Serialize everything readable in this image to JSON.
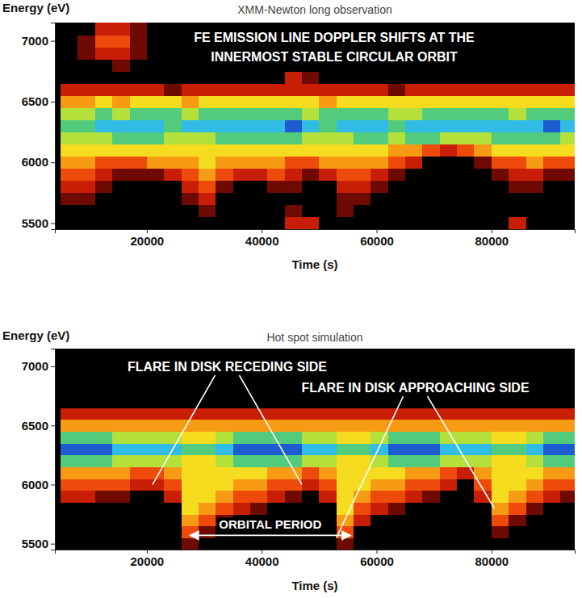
{
  "chart_data": [
    {
      "type": "heatmap",
      "title": "XMM-Newton long observation",
      "xlabel": "Time (s)",
      "ylabel": "Energy (eV)",
      "xlim": [
        4000,
        94500
      ],
      "ylim": [
        5450,
        7150
      ],
      "xticks": [
        20000,
        40000,
        60000,
        80000
      ],
      "yticks": [
        5500,
        6000,
        6500,
        7000
      ],
      "zlim": [
        0,
        9
      ],
      "x_edges": [
        5000,
        8000,
        11000,
        14000,
        17000,
        20000,
        23000,
        26000,
        29000,
        32000,
        35000,
        38000,
        41000,
        44000,
        47000,
        50000,
        53000,
        56000,
        59000,
        62000,
        65000,
        68000,
        71000,
        74000,
        77000,
        80000,
        83000,
        86000,
        89000,
        92000,
        95000
      ],
      "y_edges": [
        5450,
        5550,
        5650,
        5750,
        5850,
        5950,
        6050,
        6150,
        6250,
        6350,
        6450,
        6550,
        6650,
        6750,
        6850,
        6950,
        7050,
        7150
      ],
      "z": [
        [
          0,
          0,
          0,
          0,
          0,
          0,
          0,
          0,
          0,
          0,
          0,
          0,
          0,
          2,
          2,
          0,
          0,
          0,
          0,
          0,
          0,
          0,
          0,
          0,
          0,
          0,
          2,
          0,
          0,
          0
        ],
        [
          0,
          0,
          0,
          0,
          0,
          0,
          0,
          0,
          1,
          0,
          0,
          0,
          0,
          1,
          0,
          0,
          1,
          0,
          0,
          0,
          0,
          0,
          0,
          0,
          0,
          0,
          0,
          0,
          0,
          0
        ],
        [
          1,
          1,
          0,
          0,
          0,
          0,
          0,
          1,
          2,
          0,
          0,
          0,
          0,
          0,
          0,
          0,
          1,
          1,
          0,
          0,
          0,
          0,
          0,
          0,
          0,
          0,
          0,
          0,
          0,
          0
        ],
        [
          2,
          2,
          1,
          0,
          0,
          0,
          0,
          2,
          3,
          1,
          0,
          0,
          1,
          1,
          0,
          0,
          2,
          2,
          1,
          0,
          0,
          0,
          0,
          0,
          0,
          0,
          1,
          1,
          0,
          0
        ],
        [
          3,
          3,
          2,
          1,
          1,
          1,
          2,
          3,
          4,
          3,
          2,
          2,
          3,
          2,
          1,
          2,
          3,
          3,
          2,
          1,
          0,
          0,
          0,
          0,
          0,
          1,
          2,
          2,
          1,
          1
        ],
        [
          4,
          4,
          3,
          3,
          3,
          4,
          4,
          4,
          5,
          4,
          4,
          4,
          4,
          3,
          3,
          4,
          4,
          4,
          4,
          3,
          2,
          0,
          0,
          0,
          1,
          3,
          3,
          4,
          3,
          3
        ],
        [
          5,
          5,
          5,
          5,
          5,
          5,
          5,
          5,
          5,
          5,
          5,
          5,
          5,
          5,
          5,
          5,
          5,
          5,
          5,
          4,
          4,
          3,
          2,
          3,
          4,
          5,
          5,
          5,
          5,
          5
        ],
        [
          6,
          6,
          6,
          7,
          7,
          7,
          6,
          6,
          6,
          7,
          7,
          7,
          7,
          7,
          6,
          6,
          6,
          7,
          7,
          6,
          7,
          7,
          6,
          6,
          6,
          7,
          7,
          7,
          7,
          6
        ],
        [
          7,
          7,
          8,
          8,
          8,
          8,
          7,
          8,
          8,
          8,
          8,
          8,
          8,
          9,
          8,
          7,
          8,
          8,
          8,
          7,
          8,
          8,
          8,
          8,
          8,
          8,
          8,
          8,
          9,
          8
        ],
        [
          6,
          6,
          7,
          6,
          7,
          7,
          7,
          6,
          7,
          7,
          7,
          7,
          7,
          7,
          6,
          7,
          7,
          7,
          7,
          6,
          6,
          7,
          7,
          7,
          7,
          7,
          6,
          7,
          7,
          7
        ],
        [
          4,
          4,
          5,
          4,
          5,
          5,
          5,
          4,
          5,
          5,
          5,
          5,
          5,
          5,
          5,
          4,
          5,
          5,
          5,
          5,
          5,
          5,
          5,
          5,
          5,
          5,
          5,
          5,
          5,
          5
        ],
        [
          2,
          2,
          2,
          2,
          2,
          2,
          1,
          2,
          2,
          2,
          2,
          2,
          2,
          2,
          2,
          2,
          2,
          2,
          2,
          1,
          2,
          2,
          2,
          2,
          2,
          2,
          2,
          2,
          2,
          2
        ],
        [
          0,
          0,
          0,
          0,
          0,
          0,
          0,
          0,
          0,
          0,
          0,
          0,
          0,
          2,
          1,
          0,
          0,
          0,
          0,
          0,
          0,
          0,
          0,
          0,
          0,
          0,
          0,
          0,
          0,
          0
        ],
        [
          0,
          0,
          0,
          1,
          0,
          0,
          0,
          0,
          0,
          0,
          0,
          0,
          0,
          0,
          0,
          0,
          0,
          0,
          0,
          0,
          0,
          0,
          0,
          0,
          0,
          0,
          0,
          0,
          0,
          0
        ],
        [
          0,
          1,
          2,
          2,
          1,
          0,
          0,
          0,
          0,
          0,
          0,
          0,
          0,
          0,
          0,
          0,
          0,
          0,
          0,
          0,
          0,
          0,
          0,
          0,
          0,
          0,
          0,
          0,
          0,
          0
        ],
        [
          0,
          1,
          3,
          3,
          1,
          0,
          0,
          0,
          0,
          0,
          0,
          0,
          0,
          0,
          0,
          0,
          0,
          0,
          0,
          0,
          0,
          0,
          0,
          0,
          0,
          0,
          0,
          0,
          0,
          0
        ],
        [
          0,
          0,
          2,
          2,
          1,
          0,
          0,
          0,
          0,
          0,
          0,
          0,
          0,
          0,
          0,
          0,
          0,
          0,
          0,
          0,
          0,
          0,
          0,
          0,
          0,
          0,
          0,
          0,
          0,
          0
        ]
      ],
      "annotations": [
        {
          "text": "FE EMISSION LINE DOPPLER SHIFTS AT THE"
        },
        {
          "text": "INNERMOST STABLE CIRCULAR ORBIT"
        }
      ]
    },
    {
      "type": "heatmap",
      "title": "Hot spot simulation",
      "xlabel": "Time (s)",
      "ylabel": "Energy (eV)",
      "xlim": [
        4000,
        94500
      ],
      "ylim": [
        5450,
        7150
      ],
      "xticks": [
        20000,
        40000,
        60000,
        80000
      ],
      "yticks": [
        5500,
        6000,
        6500,
        7000
      ],
      "zlim": [
        0,
        9
      ],
      "x_edges": [
        5000,
        8000,
        11000,
        14000,
        17000,
        20000,
        23000,
        26000,
        29000,
        32000,
        35000,
        38000,
        41000,
        44000,
        47000,
        50000,
        53000,
        56000,
        59000,
        62000,
        65000,
        68000,
        71000,
        74000,
        77000,
        80000,
        83000,
        86000,
        89000,
        92000,
        95000
      ],
      "y_edges": [
        5450,
        5550,
        5650,
        5750,
        5850,
        5950,
        6050,
        6150,
        6250,
        6350,
        6450,
        6550,
        6650,
        6750,
        6850,
        6950,
        7050,
        7150
      ],
      "z": [
        [
          0,
          0,
          0,
          0,
          0,
          0,
          0,
          1,
          0,
          0,
          0,
          0,
          0,
          0,
          0,
          0,
          1,
          0,
          0,
          0,
          0,
          0,
          0,
          0,
          0,
          0,
          0,
          0,
          0,
          0
        ],
        [
          0,
          0,
          0,
          0,
          0,
          0,
          0,
          3,
          1,
          0,
          0,
          0,
          0,
          0,
          0,
          0,
          3,
          0,
          0,
          0,
          0,
          0,
          0,
          0,
          0,
          1,
          0,
          0,
          0,
          0
        ],
        [
          0,
          0,
          0,
          0,
          0,
          0,
          0,
          4,
          3,
          1,
          0,
          0,
          0,
          0,
          0,
          0,
          4,
          2,
          0,
          0,
          0,
          0,
          0,
          0,
          0,
          3,
          1,
          0,
          0,
          0
        ],
        [
          0,
          0,
          0,
          0,
          0,
          0,
          0,
          5,
          4,
          3,
          2,
          1,
          0,
          0,
          0,
          0,
          5,
          3,
          2,
          1,
          0,
          0,
          0,
          0,
          0,
          4,
          3,
          1,
          0,
          0
        ],
        [
          2,
          2,
          1,
          1,
          0,
          0,
          2,
          5,
          5,
          4,
          3,
          3,
          2,
          1,
          0,
          2,
          5,
          4,
          3,
          3,
          2,
          1,
          0,
          0,
          2,
          5,
          4,
          3,
          2,
          1
        ],
        [
          3,
          3,
          3,
          3,
          2,
          2,
          3,
          5,
          5,
          5,
          4,
          4,
          3,
          3,
          2,
          3,
          5,
          5,
          4,
          4,
          3,
          3,
          2,
          0,
          3,
          5,
          5,
          4,
          3,
          3
        ],
        [
          4,
          4,
          4,
          4,
          3,
          3,
          4,
          5,
          5,
          5,
          5,
          5,
          4,
          4,
          3,
          4,
          5,
          5,
          5,
          5,
          4,
          4,
          3,
          2,
          4,
          5,
          5,
          5,
          4,
          4
        ],
        [
          7,
          7,
          7,
          6,
          6,
          6,
          6,
          5,
          5,
          6,
          7,
          7,
          7,
          7,
          6,
          6,
          5,
          5,
          6,
          7,
          7,
          7,
          6,
          6,
          6,
          5,
          5,
          6,
          7,
          7
        ],
        [
          9,
          9,
          9,
          8,
          8,
          8,
          8,
          7,
          7,
          8,
          9,
          9,
          9,
          9,
          8,
          8,
          7,
          7,
          8,
          9,
          9,
          9,
          8,
          8,
          8,
          7,
          7,
          8,
          9,
          9
        ],
        [
          7,
          7,
          7,
          6,
          6,
          6,
          6,
          5,
          5,
          6,
          7,
          7,
          7,
          7,
          6,
          6,
          5,
          5,
          6,
          7,
          7,
          7,
          6,
          6,
          6,
          5,
          5,
          6,
          7,
          7
        ],
        [
          4,
          4,
          4,
          4,
          4,
          4,
          4,
          4,
          4,
          4,
          4,
          4,
          4,
          4,
          4,
          4,
          4,
          4,
          4,
          4,
          4,
          4,
          4,
          4,
          4,
          4,
          4,
          4,
          4,
          4
        ],
        [
          2,
          2,
          2,
          2,
          2,
          2,
          2,
          2,
          2,
          2,
          2,
          2,
          2,
          2,
          2,
          2,
          2,
          2,
          2,
          2,
          2,
          2,
          2,
          2,
          2,
          2,
          2,
          2,
          2,
          2
        ],
        [
          0,
          0,
          0,
          0,
          0,
          0,
          0,
          0,
          0,
          0,
          0,
          0,
          0,
          0,
          0,
          0,
          0,
          0,
          0,
          0,
          0,
          0,
          0,
          0,
          0,
          0,
          0,
          0,
          0,
          0
        ],
        [
          0,
          0,
          0,
          0,
          0,
          0,
          0,
          0,
          0,
          0,
          0,
          0,
          0,
          0,
          0,
          0,
          0,
          0,
          0,
          0,
          0,
          0,
          0,
          0,
          0,
          0,
          0,
          0,
          0,
          0
        ],
        [
          0,
          0,
          0,
          0,
          0,
          0,
          0,
          0,
          0,
          0,
          0,
          0,
          0,
          0,
          0,
          0,
          0,
          0,
          0,
          0,
          0,
          0,
          0,
          0,
          0,
          0,
          0,
          0,
          0,
          0
        ],
        [
          0,
          0,
          0,
          0,
          0,
          0,
          0,
          0,
          0,
          0,
          0,
          0,
          0,
          0,
          0,
          0,
          0,
          0,
          0,
          0,
          0,
          0,
          0,
          0,
          0,
          0,
          0,
          0,
          0,
          0
        ],
        [
          0,
          0,
          0,
          0,
          0,
          0,
          0,
          0,
          0,
          0,
          0,
          0,
          0,
          0,
          0,
          0,
          0,
          0,
          0,
          0,
          0,
          0,
          0,
          0,
          0,
          0,
          0,
          0,
          0,
          0
        ]
      ],
      "annotations": [
        {
          "text": "FLARE IN DISK RECEDING SIDE",
          "points": [
            [
              21000,
              6000
            ],
            [
              47000,
              6000
            ]
          ]
        },
        {
          "text": "FLARE IN DISK APPROACHING SIDE",
          "points": [
            [
              53000,
              5550
            ],
            [
              80500,
              5800
            ]
          ]
        },
        {
          "text": "ORBITAL PERIOD",
          "span": [
            27500,
            55500
          ],
          "y": 5570
        }
      ]
    }
  ]
}
